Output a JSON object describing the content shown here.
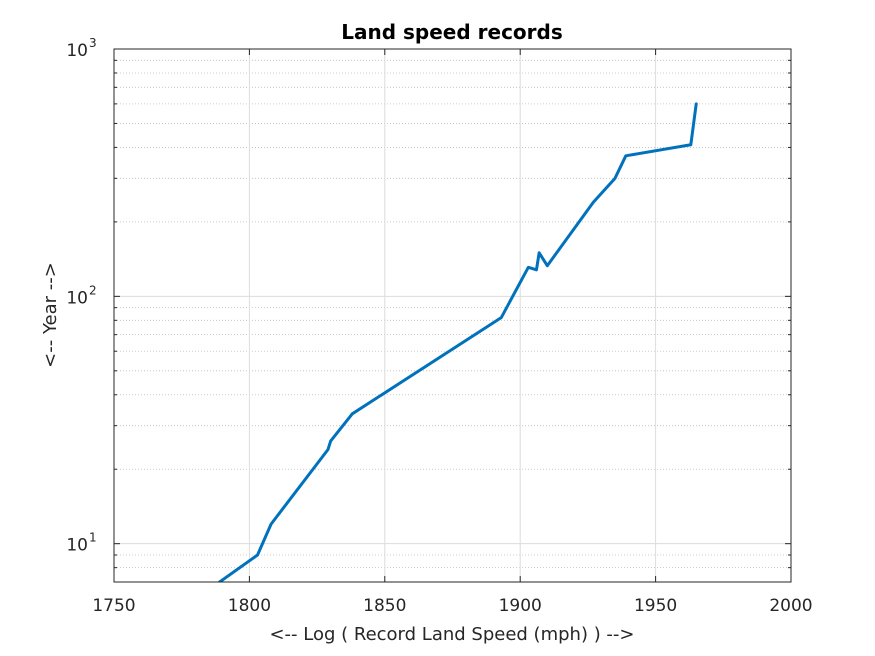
{
  "chart_data": {
    "type": "line",
    "title": "Land speed records",
    "xlabel": "<-- Log ( Record Land Speed (mph) ) -->",
    "ylabel": "<-- Year -->",
    "xlim": [
      1750,
      2000
    ],
    "ylim": [
      7,
      1000
    ],
    "yscale": "log",
    "grid": true,
    "minor_grid": true,
    "x_ticks": [
      1750,
      1800,
      1850,
      1900,
      1950,
      2000
    ],
    "x_tick_labels": [
      "1750",
      "1800",
      "1850",
      "1900",
      "1950",
      "2000"
    ],
    "y_ticks": [
      10,
      100,
      1000
    ],
    "y_tick_labels": [
      {
        "base": "10",
        "exp": "1"
      },
      {
        "base": "10",
        "exp": "2"
      },
      {
        "base": "10",
        "exp": "3"
      }
    ],
    "series": [
      {
        "color": "#0072BD",
        "x": [
          1789,
          1803,
          1808,
          1829,
          1830,
          1838,
          1893,
          1903,
          1906,
          1907,
          1910,
          1927,
          1935,
          1939,
          1963,
          1965
        ],
        "y": [
          7,
          9,
          12,
          24,
          26,
          33.5,
          82,
          131,
          128,
          150,
          133,
          240,
          300,
          370,
          410,
          600
        ]
      }
    ]
  }
}
